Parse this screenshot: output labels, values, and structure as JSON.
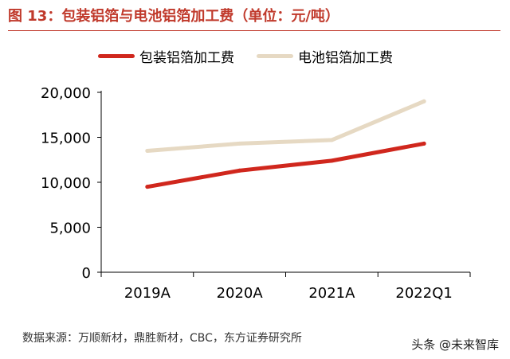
{
  "title": "图 13：包装铝箔与电池铝箔加工费（单位：元/吨）",
  "source": "数据来源：万顺新材，鼎胜新材，CBC，东方证券研究所",
  "watermark": "头条 @未来智库",
  "chart_data": {
    "type": "line",
    "categories": [
      "2019A",
      "2020A",
      "2021A",
      "2022Q1"
    ],
    "series": [
      {
        "name": "包装铝箔加工费",
        "color": "#d0271d",
        "values": [
          9500,
          11300,
          12400,
          14300
        ]
      },
      {
        "name": "电池铝箔加工费",
        "color": "#e6d9c3",
        "values": [
          13500,
          14300,
          14700,
          19000
        ]
      }
    ],
    "ylim": [
      0,
      20000
    ],
    "yticks": [
      "0",
      "5,000",
      "10,000",
      "15,000",
      "20,000"
    ],
    "ytick_values": [
      0,
      5000,
      10000,
      15000,
      20000
    ],
    "legend": "top",
    "grid": false
  }
}
